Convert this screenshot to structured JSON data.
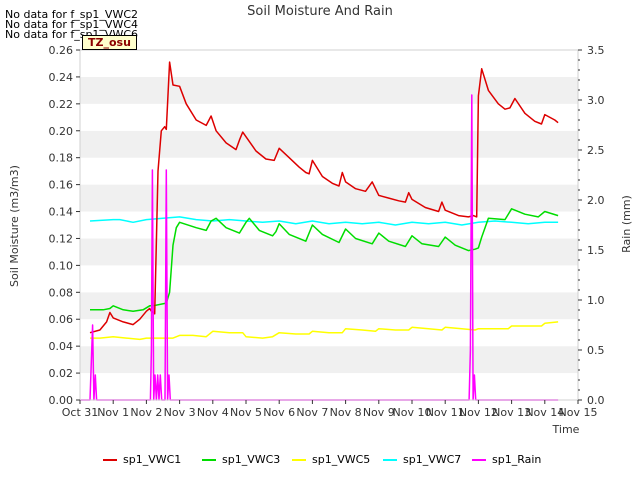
{
  "nodata": [
    "No data for f_sp1_VWC2",
    "No data for f_sp1_VWC4",
    "No data for f_sp1_VWC6"
  ],
  "tz_label": "TZ_osu",
  "chart_data": {
    "type": "line",
    "title": "Soil Moisture And Rain",
    "xlabel": "Time",
    "ylabel": "Soil Moisture (m3/m3)",
    "y2label": "Rain (mm)",
    "ylim": [
      0,
      0.26
    ],
    "y2lim": [
      0,
      3.5
    ],
    "yticks": [
      "0.00",
      "0.02",
      "0.04",
      "0.06",
      "0.08",
      "0.10",
      "0.12",
      "0.14",
      "0.16",
      "0.18",
      "0.20",
      "0.22",
      "0.24",
      "0.26"
    ],
    "y2ticks": [
      "0.0",
      "0.5",
      "1.0",
      "1.5",
      "2.0",
      "2.5",
      "3.0",
      "3.5"
    ],
    "xticks": [
      "Oct 31",
      "Nov 1",
      "Nov 2",
      "Nov 3",
      "Nov 4",
      "Nov 5",
      "Nov 6",
      "Nov 7",
      "Nov 8",
      "Nov 9",
      "Nov 10",
      "Nov 11",
      "Nov 12",
      "Nov 13",
      "Nov 14",
      "Nov 15"
    ],
    "xlim": [
      0,
      15
    ],
    "grid": "horizontal bands",
    "legend": "bottom",
    "series": [
      {
        "name": "sp1_VWC1",
        "color": "#dd0000",
        "axis": "left",
        "x": [
          0.3,
          0.6,
          0.8,
          0.9,
          1.0,
          1.3,
          1.6,
          1.8,
          2.0,
          2.1,
          2.15,
          2.25,
          2.35,
          2.45,
          2.55,
          2.6,
          2.7,
          2.8,
          3.0,
          3.2,
          3.5,
          3.8,
          3.95,
          4.1,
          4.4,
          4.7,
          4.8,
          4.9,
          5.3,
          5.6,
          5.85,
          6.0,
          6.3,
          6.6,
          6.8,
          6.9,
          7.0,
          7.3,
          7.6,
          7.8,
          7.9,
          8.0,
          8.3,
          8.6,
          8.8,
          8.9,
          9.0,
          9.3,
          9.6,
          9.8,
          9.9,
          10.0,
          10.4,
          10.8,
          10.9,
          11.0,
          11.4,
          11.7,
          11.85,
          11.95,
          12.0,
          12.1,
          12.3,
          12.6,
          12.8,
          12.95,
          13.1,
          13.4,
          13.7,
          13.9,
          14.0,
          14.3,
          14.4
        ],
        "values": [
          0.05,
          0.052,
          0.058,
          0.065,
          0.061,
          0.058,
          0.056,
          0.06,
          0.066,
          0.068,
          0.066,
          0.064,
          0.17,
          0.2,
          0.203,
          0.201,
          0.251,
          0.234,
          0.233,
          0.22,
          0.208,
          0.204,
          0.211,
          0.2,
          0.191,
          0.186,
          0.193,
          0.199,
          0.185,
          0.179,
          0.178,
          0.187,
          0.18,
          0.173,
          0.169,
          0.168,
          0.178,
          0.166,
          0.161,
          0.159,
          0.169,
          0.162,
          0.157,
          0.155,
          0.162,
          0.157,
          0.152,
          0.15,
          0.148,
          0.147,
          0.154,
          0.149,
          0.143,
          0.14,
          0.147,
          0.141,
          0.137,
          0.136,
          0.137,
          0.136,
          0.226,
          0.246,
          0.23,
          0.22,
          0.216,
          0.217,
          0.224,
          0.213,
          0.207,
          0.205,
          0.212,
          0.208,
          0.206
        ]
      },
      {
        "name": "sp1_VWC3",
        "color": "#00dd00",
        "axis": "left",
        "x": [
          0.3,
          0.7,
          0.9,
          1.0,
          1.3,
          1.6,
          1.9,
          2.1,
          2.2,
          2.6,
          2.7,
          2.8,
          2.9,
          3.0,
          3.5,
          3.8,
          3.95,
          4.1,
          4.4,
          4.8,
          5.0,
          5.1,
          5.4,
          5.8,
          5.9,
          6.0,
          6.3,
          6.8,
          7.0,
          7.3,
          7.8,
          8.0,
          8.3,
          8.8,
          9.0,
          9.3,
          9.8,
          10.0,
          10.3,
          10.8,
          11.0,
          11.3,
          11.7,
          11.9,
          12.0,
          12.1,
          12.3,
          12.8,
          13.0,
          13.4,
          13.8,
          14.0,
          14.4
        ],
        "values": [
          0.067,
          0.067,
          0.068,
          0.07,
          0.067,
          0.066,
          0.067,
          0.07,
          0.07,
          0.072,
          0.08,
          0.115,
          0.128,
          0.132,
          0.128,
          0.126,
          0.133,
          0.135,
          0.128,
          0.124,
          0.132,
          0.135,
          0.126,
          0.122,
          0.125,
          0.131,
          0.123,
          0.118,
          0.13,
          0.123,
          0.117,
          0.127,
          0.12,
          0.116,
          0.124,
          0.118,
          0.114,
          0.122,
          0.116,
          0.114,
          0.121,
          0.115,
          0.111,
          0.112,
          0.113,
          0.121,
          0.135,
          0.134,
          0.142,
          0.138,
          0.136,
          0.14,
          0.137
        ]
      },
      {
        "name": "sp1_VWC5",
        "color": "#ffff00",
        "axis": "left",
        "x": [
          0.3,
          0.6,
          1.0,
          1.4,
          1.8,
          2.0,
          2.4,
          2.8,
          3.0,
          3.4,
          3.8,
          4.0,
          4.5,
          4.9,
          5.0,
          5.5,
          5.8,
          6.0,
          6.5,
          6.9,
          7.0,
          7.5,
          7.9,
          8.0,
          8.5,
          8.9,
          9.0,
          9.5,
          9.9,
          10.0,
          10.5,
          10.9,
          11.0,
          11.5,
          11.9,
          12.0,
          12.5,
          12.9,
          13.0,
          13.5,
          13.9,
          14.0,
          14.4
        ],
        "values": [
          0.046,
          0.046,
          0.047,
          0.046,
          0.045,
          0.046,
          0.046,
          0.046,
          0.048,
          0.048,
          0.047,
          0.051,
          0.05,
          0.05,
          0.047,
          0.046,
          0.047,
          0.05,
          0.049,
          0.049,
          0.051,
          0.05,
          0.05,
          0.053,
          0.052,
          0.051,
          0.053,
          0.052,
          0.052,
          0.054,
          0.053,
          0.052,
          0.054,
          0.053,
          0.052,
          0.053,
          0.053,
          0.053,
          0.055,
          0.055,
          0.055,
          0.057,
          0.058
        ]
      },
      {
        "name": "sp1_VWC7",
        "color": "#00ffff",
        "axis": "left",
        "x": [
          0.3,
          1.0,
          1.2,
          1.6,
          2.0,
          2.5,
          3.0,
          3.5,
          4.0,
          4.5,
          5.0,
          5.5,
          6.0,
          6.5,
          7.0,
          7.5,
          8.0,
          8.5,
          9.0,
          9.5,
          10.0,
          10.5,
          11.0,
          11.5,
          12.0,
          12.5,
          13.0,
          13.5,
          14.0,
          14.4
        ],
        "values": [
          0.133,
          0.134,
          0.134,
          0.132,
          0.134,
          0.135,
          0.136,
          0.134,
          0.133,
          0.134,
          0.133,
          0.132,
          0.133,
          0.131,
          0.133,
          0.131,
          0.132,
          0.131,
          0.132,
          0.13,
          0.132,
          0.131,
          0.132,
          0.13,
          0.132,
          0.133,
          0.132,
          0.131,
          0.132,
          0.132
        ]
      },
      {
        "name": "sp1_Rain",
        "color": "#ff00ff",
        "axis": "right",
        "x": [
          0.0,
          0.3,
          0.38,
          0.42,
          0.46,
          0.5,
          0.55,
          2.0,
          2.12,
          2.15,
          2.18,
          2.22,
          2.26,
          2.3,
          2.34,
          2.38,
          2.42,
          2.46,
          2.52,
          2.56,
          2.6,
          2.64,
          2.68,
          2.72,
          2.8,
          11.6,
          11.72,
          11.76,
          11.8,
          11.84,
          11.88,
          11.92,
          14.4
        ],
        "values": [
          0,
          0,
          0.75,
          0,
          0.25,
          0,
          0,
          0,
          0,
          0.5,
          2.3,
          0,
          0.25,
          0,
          0.25,
          0,
          0.25,
          0,
          0,
          0,
          2.3,
          0,
          0.25,
          0,
          0,
          0,
          0,
          0.5,
          3.05,
          0,
          0.25,
          0,
          0
        ]
      }
    ]
  }
}
